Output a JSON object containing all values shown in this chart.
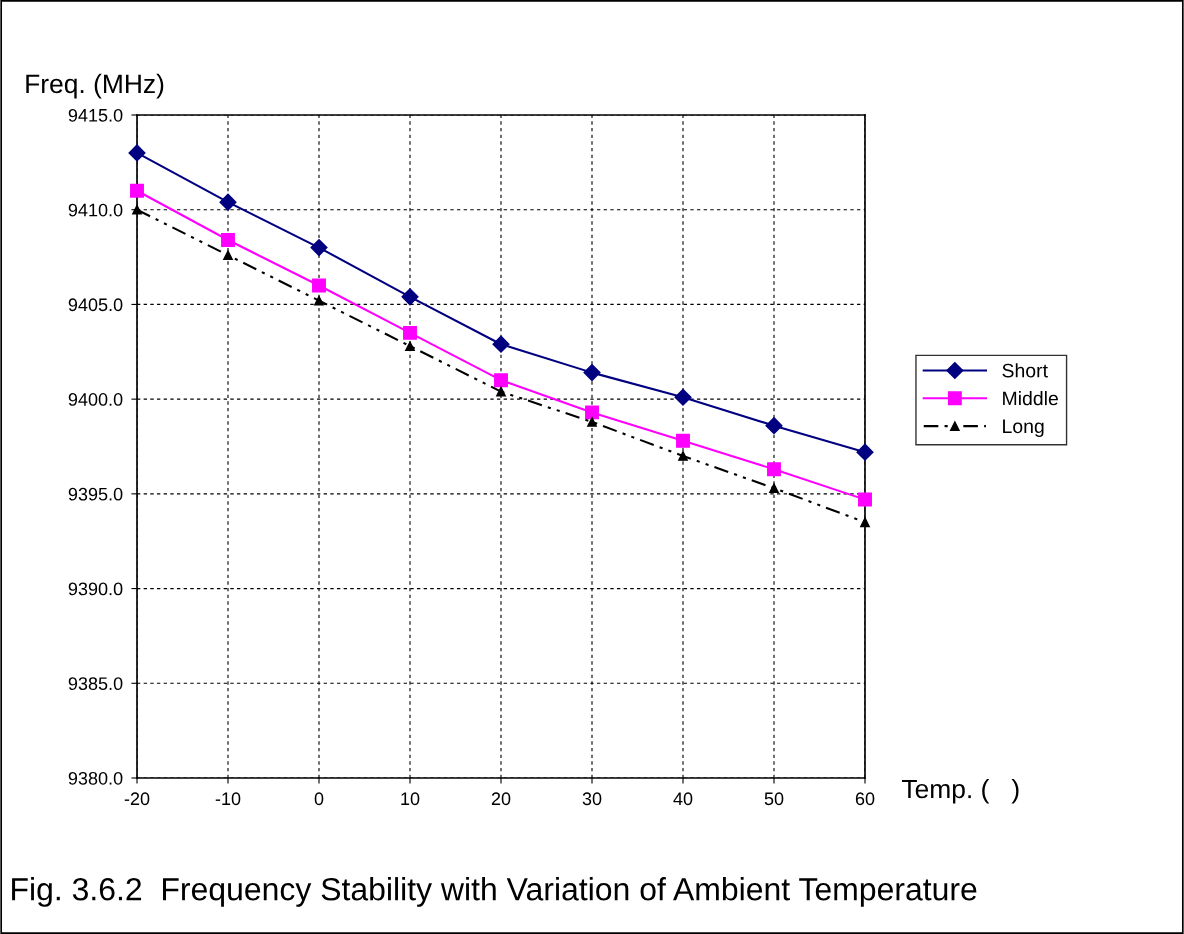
{
  "chart_data": {
    "type": "line",
    "title": "Fig. 3.6.2  Frequency Stability with Variation of Ambient Temperature",
    "xlabel": "Temp. (   )",
    "ylabel": "Freq. (MHz)",
    "x": [
      -20,
      -10,
      0,
      10,
      20,
      30,
      40,
      50,
      60
    ],
    "series": [
      {
        "name": "Short",
        "color": "#000080",
        "marker": "diamond",
        "line_style": "solid",
        "values": [
          9413.0,
          9410.4,
          9408.0,
          9405.4,
          9402.9,
          9401.4,
          9400.1,
          9398.6,
          9397.2
        ]
      },
      {
        "name": "Middle",
        "color": "#ff00ff",
        "marker": "square",
        "line_style": "solid",
        "values": [
          9411.0,
          9408.4,
          9406.0,
          9403.5,
          9401.0,
          9399.3,
          9397.8,
          9396.3,
          9394.7
        ]
      },
      {
        "name": "Long",
        "color": "#000000",
        "marker": "triangle",
        "line_style": "dashdot",
        "values": [
          9410.0,
          9407.6,
          9405.2,
          9402.8,
          9400.4,
          9398.8,
          9397.0,
          9395.3,
          9393.5
        ]
      }
    ],
    "xlim": [
      -20,
      60
    ],
    "xticks": [
      -20,
      -10,
      0,
      10,
      20,
      30,
      40,
      50,
      60
    ],
    "ylim": [
      9380,
      9415
    ],
    "yticks": [
      {
        "value": 9380,
        "label": "9380.0"
      },
      {
        "value": 9385,
        "label": "9385.0"
      },
      {
        "value": 9390,
        "label": "9390.0"
      },
      {
        "value": 9395,
        "label": "9395.0"
      },
      {
        "value": 9400,
        "label": "9400.0"
      },
      {
        "value": 9405,
        "label": "9405.0"
      },
      {
        "value": 9410,
        "label": "9410.0"
      },
      {
        "value": 9415,
        "label": "9415.0"
      }
    ],
    "grid": true,
    "legend": "right"
  }
}
